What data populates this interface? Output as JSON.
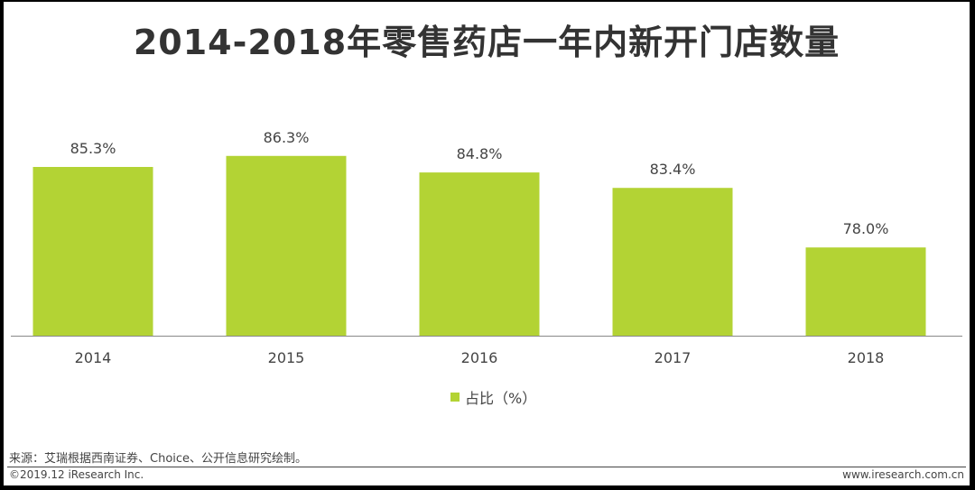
{
  "title": "2014-2018年零售药店一年内新开门店数量",
  "source": "来源：艾瑞根据西南证券、Choice、公开信息研究绘制。",
  "copyright": "©2019.12 iResearch Inc.",
  "website": "www.iresearch.com.cn",
  "colors": {
    "bar": "#b3d334",
    "axis": "#888888",
    "text": "#444444"
  },
  "chart_data": {
    "type": "bar",
    "categories": [
      "2014",
      "2015",
      "2016",
      "2017",
      "2018"
    ],
    "series": [
      {
        "name": "占比（%）",
        "values": [
          85.3,
          86.3,
          84.8,
          83.4,
          78.0
        ]
      }
    ],
    "data_labels": [
      "85.3%",
      "86.3%",
      "84.8%",
      "83.4%",
      "78.0%"
    ],
    "title": "2014-2018年零售药店一年内新开门店数量",
    "xlabel": "",
    "ylabel": "",
    "ylim": [
      70,
      88
    ],
    "grid": false,
    "legend": "bottom-center"
  }
}
